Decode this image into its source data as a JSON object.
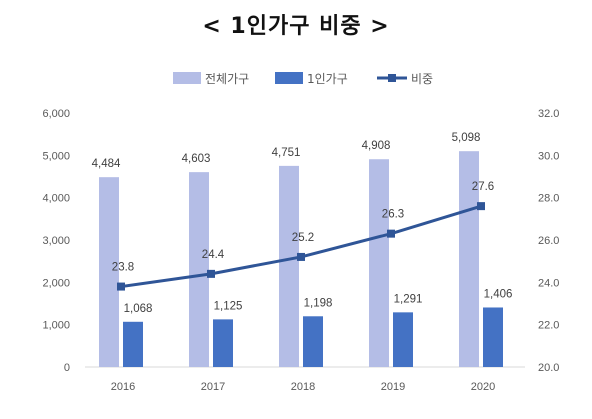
{
  "chart_data": {
    "type": "bar",
    "title": "< 1인가구 비중 >",
    "categories": [
      "2016",
      "2017",
      "2018",
      "2019",
      "2020"
    ],
    "series": [
      {
        "name": "전체가구",
        "type": "bar",
        "axis": "left",
        "color": "#b4bde6",
        "values": [
          4484,
          4603,
          4751,
          4908,
          5098
        ],
        "labels": [
          "4,484",
          "4,603",
          "4,751",
          "4,908",
          "5,098"
        ]
      },
      {
        "name": "1인가구",
        "type": "bar",
        "axis": "left",
        "color": "#4472c4",
        "values": [
          1068,
          1125,
          1198,
          1291,
          1406
        ],
        "labels": [
          "1,068",
          "1,125",
          "1,198",
          "1,291",
          "1,406"
        ]
      },
      {
        "name": "비중",
        "type": "line",
        "axis": "right",
        "color": "#2f5597",
        "values": [
          23.8,
          24.4,
          25.2,
          26.3,
          27.6
        ],
        "labels": [
          "23.8",
          "24.4",
          "25.2",
          "26.3",
          "27.6"
        ]
      }
    ],
    "y_left": {
      "ylim": [
        0,
        6000
      ],
      "ticks": [
        "0",
        "1,000",
        "2,000",
        "3,000",
        "4,000",
        "5,000",
        "6,000"
      ]
    },
    "y_right": {
      "ylim": [
        20,
        32
      ],
      "ticks": [
        "20.0",
        "22.0",
        "24.0",
        "26.0",
        "28.0",
        "30.0",
        "32.0"
      ]
    },
    "grid": false,
    "legend": "top"
  }
}
